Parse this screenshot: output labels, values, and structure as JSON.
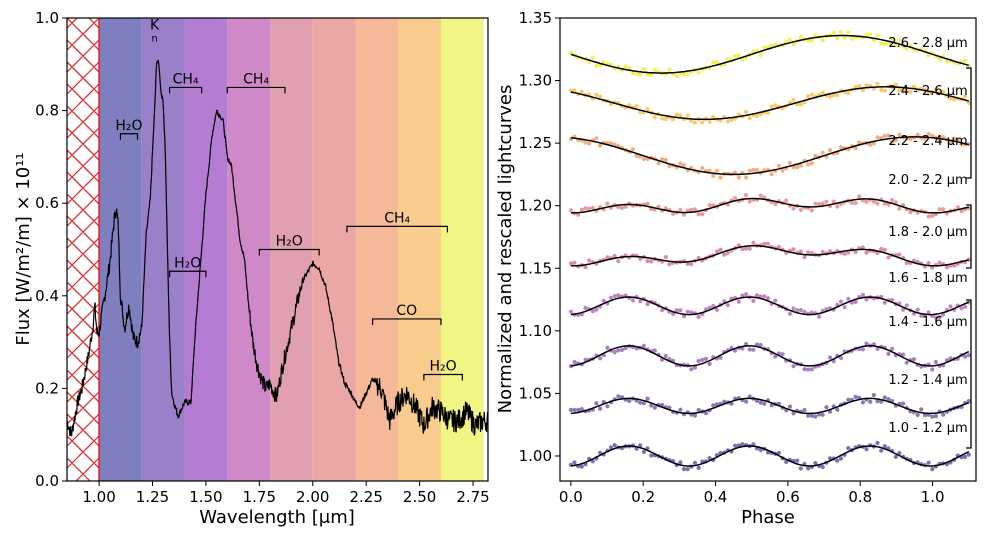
{
  "figure": {
    "left_panel": "spectrum",
    "right_panel": "lightcurves"
  },
  "chart_data": [
    {
      "type": "line",
      "xlabel": "Wavelength [μm]",
      "ylabel": "Flux [W/m²/m] × 10¹¹",
      "xlim": [
        0.85,
        2.82
      ],
      "ylim": [
        0.0,
        1.0
      ],
      "xticks": [
        1.0,
        1.25,
        1.5,
        1.75,
        2.0,
        2.25,
        2.5,
        2.75
      ],
      "xtick_labels": [
        "1.00",
        "1.25",
        "1.50",
        "1.75",
        "2.00",
        "2.25",
        "2.50",
        "2.75"
      ],
      "yticks": [
        0.0,
        0.2,
        0.4,
        0.6,
        0.8,
        1.0
      ],
      "ytick_labels": [
        "0.0",
        "0.2",
        "0.4",
        "0.6",
        "0.8",
        "1.0"
      ],
      "masked_region": [
        0.85,
        1.0
      ],
      "bands": [
        {
          "range": [
            1.0,
            1.2
          ],
          "color": "#7f7fbf"
        },
        {
          "range": [
            1.2,
            1.4
          ],
          "color": "#9a7fc9"
        },
        {
          "range": [
            1.4,
            1.6
          ],
          "color": "#b57cd4"
        },
        {
          "range": [
            1.6,
            1.8
          ],
          "color": "#cf89c8"
        },
        {
          "range": [
            1.8,
            2.0
          ],
          "color": "#e1a0b2"
        },
        {
          "range": [
            2.0,
            2.2
          ],
          "color": "#eba6a6"
        },
        {
          "range": [
            2.2,
            2.4
          ],
          "color": "#f5b99a"
        },
        {
          "range": [
            2.4,
            2.6
          ],
          "color": "#f8cc8c"
        },
        {
          "range": [
            2.6,
            2.8
          ],
          "color": "#f0f584"
        }
      ],
      "series": [
        {
          "name": "spectrum",
          "x": [
            0.85,
            0.87,
            0.9,
            0.92,
            0.95,
            0.97,
            0.98,
            0.99,
            1.0,
            1.02,
            1.05,
            1.07,
            1.08,
            1.09,
            1.1,
            1.12,
            1.14,
            1.16,
            1.18,
            1.2,
            1.22,
            1.24,
            1.25,
            1.26,
            1.27,
            1.28,
            1.29,
            1.3,
            1.31,
            1.32,
            1.33,
            1.34,
            1.35,
            1.37,
            1.4,
            1.43,
            1.45,
            1.48,
            1.5,
            1.53,
            1.55,
            1.58,
            1.6,
            1.62,
            1.64,
            1.66,
            1.68,
            1.7,
            1.72,
            1.74,
            1.76,
            1.78,
            1.8,
            1.83,
            1.86,
            1.9,
            1.95,
            2.0,
            2.03,
            2.06,
            2.09,
            2.12,
            2.15,
            2.18,
            2.2,
            2.22,
            2.25,
            2.28,
            2.32,
            2.36,
            2.4,
            2.44,
            2.48,
            2.52,
            2.56,
            2.6,
            2.64,
            2.68,
            2.72,
            2.76,
            2.8,
            2.82
          ],
          "y": [
            0.13,
            0.1,
            0.17,
            0.2,
            0.27,
            0.33,
            0.38,
            0.32,
            0.32,
            0.38,
            0.47,
            0.56,
            0.59,
            0.55,
            0.4,
            0.33,
            0.38,
            0.31,
            0.3,
            0.33,
            0.53,
            0.61,
            0.71,
            0.8,
            0.91,
            0.9,
            0.84,
            0.82,
            0.71,
            0.5,
            0.31,
            0.19,
            0.17,
            0.14,
            0.17,
            0.17,
            0.32,
            0.5,
            0.62,
            0.75,
            0.8,
            0.78,
            0.7,
            0.68,
            0.6,
            0.52,
            0.48,
            0.38,
            0.3,
            0.25,
            0.22,
            0.2,
            0.21,
            0.18,
            0.25,
            0.33,
            0.43,
            0.47,
            0.46,
            0.42,
            0.35,
            0.26,
            0.21,
            0.19,
            0.17,
            0.16,
            0.19,
            0.22,
            0.2,
            0.13,
            0.17,
            0.19,
            0.16,
            0.12,
            0.16,
            0.15,
            0.13,
            0.13,
            0.15,
            0.12,
            0.13,
            0.13
          ]
        }
      ],
      "annotations": [
        {
          "text": "H₂O",
          "x1": 1.1,
          "x2": 1.18,
          "y": 0.75
        },
        {
          "text": "CH₄",
          "x1": 1.33,
          "x2": 1.48,
          "y": 0.85
        },
        {
          "text": "CH₄",
          "x1": 1.6,
          "x2": 1.87,
          "y": 0.85
        },
        {
          "text": "H₂O",
          "x1": 1.33,
          "x2": 1.5,
          "y": 0.453
        },
        {
          "text": "H₂O",
          "x1": 1.75,
          "x2": 2.03,
          "y": 0.5
        },
        {
          "text": "CH₄",
          "x1": 2.16,
          "x2": 2.63,
          "y": 0.55
        },
        {
          "text": "CO",
          "x1": 2.28,
          "x2": 2.6,
          "y": 0.35
        },
        {
          "text": "H₂O",
          "x1": 2.52,
          "x2": 2.7,
          "y": 0.23
        },
        {
          "text": "K",
          "x": 1.26,
          "y": 0.975,
          "sub": "n"
        }
      ]
    },
    {
      "type": "scatter",
      "xlabel": "Phase",
      "ylabel": "Normalized and rescaled lightcurves",
      "xlim": [
        -0.03,
        1.12
      ],
      "ylim": [
        0.98,
        1.35
      ],
      "xticks": [
        0.0,
        0.2,
        0.4,
        0.6,
        0.8,
        1.0
      ],
      "xtick_labels": [
        "0.0",
        "0.2",
        "0.4",
        "0.6",
        "0.8",
        "1.0"
      ],
      "yticks": [
        1.0,
        1.05,
        1.1,
        1.15,
        1.2,
        1.25,
        1.3,
        1.35
      ],
      "ytick_labels": [
        "1.00",
        "1.05",
        "1.10",
        "1.15",
        "1.20",
        "1.25",
        "1.30",
        "1.35"
      ],
      "series": [
        {
          "name": "1.0 - 1.2 μm",
          "color": "#5d5aa3",
          "offset": 1.0,
          "amp1": 0.0,
          "amp2": 0.008,
          "ph": 0.0
        },
        {
          "name": "1.2 - 1.4 μm",
          "color": "#7a5fa8",
          "offset": 1.04,
          "amp1": 0.0,
          "amp2": 0.006,
          "ph": 0.0
        },
        {
          "name": "1.4 - 1.6 μm",
          "color": "#9a66b3",
          "offset": 1.08,
          "amp1": 0.0,
          "amp2": 0.008,
          "ph": 0.0
        },
        {
          "name": "1.6 - 1.8 μm",
          "color": "#b76fb6",
          "offset": 1.12,
          "amp1": 0.0,
          "amp2": 0.007,
          "ph": 0.0
        },
        {
          "name": "1.8 - 2.0 μm",
          "color": "#d17a9e",
          "offset": 1.16,
          "amp1": 0.005,
          "amp2": 0.004,
          "ph": 0.1
        },
        {
          "name": "2.0 - 2.2 μm",
          "color": "#e48b8b",
          "offset": 1.2,
          "amp1": 0.003,
          "amp2": 0.004,
          "ph": 0.15
        },
        {
          "name": "2.2 - 2.4 μm",
          "color": "#f0a06a",
          "offset": 1.24,
          "amp1": 0.015,
          "amp2": 0.0,
          "ph": 0.45
        },
        {
          "name": "2.4 - 2.6 μm",
          "color": "#f8c24c",
          "offset": 1.282,
          "amp1": 0.013,
          "amp2": 0.0,
          "ph": 0.37
        },
        {
          "name": "2.6 - 2.8 μm",
          "color": "#f0ee3a",
          "offset": 1.321,
          "amp1": 0.015,
          "amp2": 0.0,
          "ph": 0.25
        }
      ],
      "labels": [
        "2.6 - 2.8 μm",
        "2.4 - 2.6 μm",
        "2.2 - 2.4 μm",
        "2.0 - 2.2 μm",
        "1.8 - 2.0 μm",
        "1.6 - 1.8 μm",
        "1.4 - 1.6 μm",
        "1.2 - 1.4 μm",
        "1.0 - 1.2 μm"
      ]
    }
  ]
}
